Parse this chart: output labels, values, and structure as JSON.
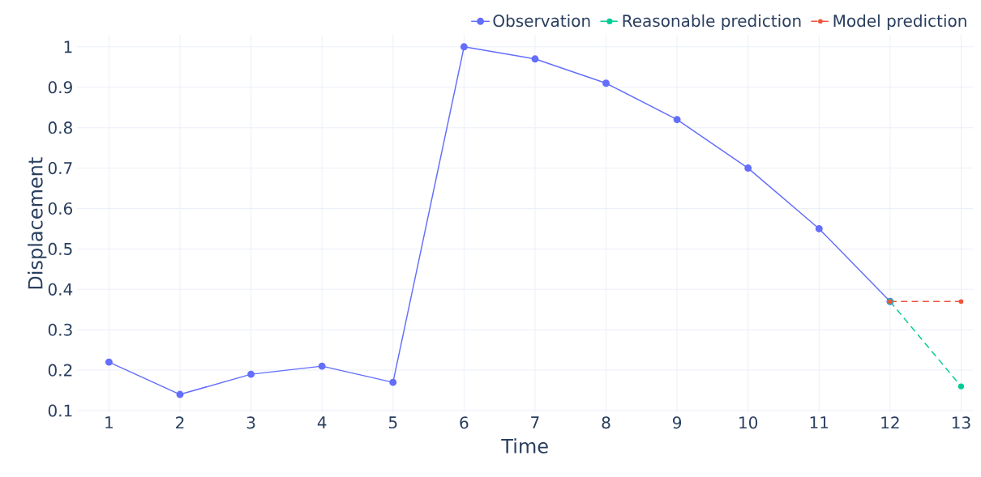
{
  "chart_data": {
    "type": "line",
    "xlabel": "Time",
    "ylabel": "Displacement",
    "series": [
      {
        "name": "Observation",
        "color": "#636efa",
        "line_style": "solid",
        "x": [
          1,
          2,
          3,
          4,
          5,
          6,
          7,
          8,
          9,
          10,
          11,
          12
        ],
        "values": [
          0.22,
          0.14,
          0.19,
          0.21,
          0.17,
          1.0,
          0.97,
          0.91,
          0.82,
          0.7,
          0.55,
          0.37
        ]
      },
      {
        "name": "Reasonable prediction",
        "color": "#00cc96",
        "line_style": "dashed",
        "x": [
          12,
          13
        ],
        "values": [
          0.37,
          0.16
        ]
      },
      {
        "name": "Model prediction",
        "color": "#ef553b",
        "line_style": "dashed",
        "x": [
          12,
          13
        ],
        "values": [
          0.37,
          0.37
        ]
      }
    ],
    "xlim": [
      0.55,
      13.17
    ],
    "ylim": [
      0.095,
      1.03
    ],
    "xticks": [
      1,
      2,
      3,
      4,
      5,
      6,
      7,
      8,
      9,
      10,
      11,
      12,
      13
    ],
    "yticks": [
      0.1,
      0.2,
      0.3,
      0.4,
      0.5,
      0.6,
      0.7,
      0.8,
      0.9,
      1
    ],
    "grid": true,
    "legend": "top right",
    "marker": "circle"
  }
}
